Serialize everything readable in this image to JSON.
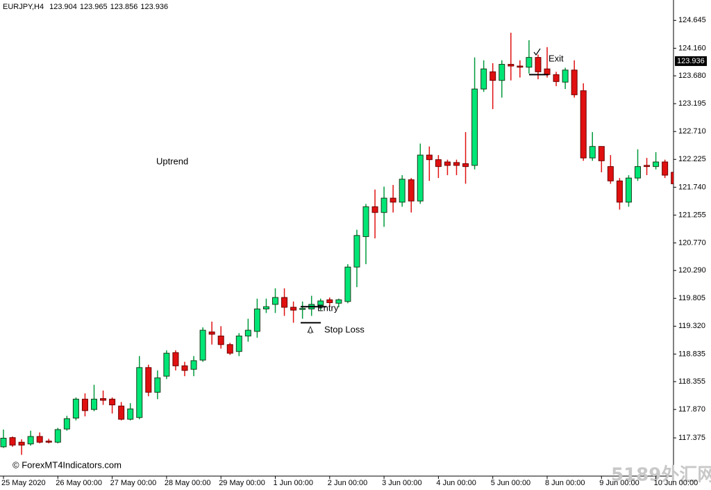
{
  "chart_data": {
    "type": "candlestick",
    "title": "EURJPY,H4",
    "header_values": [
      123.904,
      123.965,
      123.856,
      123.936
    ],
    "current_price": 123.936,
    "categories": [
      "25 May 2020",
      null,
      null,
      null,
      null,
      null,
      "26 May 00:00",
      null,
      null,
      null,
      null,
      null,
      "27 May 00:00",
      null,
      null,
      null,
      null,
      null,
      "28 May 00:00",
      null,
      null,
      null,
      null,
      null,
      "29 May 00:00",
      null,
      null,
      null,
      null,
      null,
      "1 Jun 00:00",
      null,
      null,
      null,
      null,
      null,
      "2 Jun 00:00",
      null,
      null,
      null,
      null,
      null,
      "3 Jun 00:00",
      null,
      null,
      null,
      null,
      null,
      "4 Jun 00:00",
      null,
      null,
      null,
      null,
      null,
      "5 Jun 00:00",
      null,
      null,
      null,
      null,
      null,
      "8 Jun 00:00",
      null,
      null,
      null,
      null,
      null,
      "9 Jun 00:00",
      null,
      null,
      null,
      null,
      null,
      "10 Jun 00:00",
      null,
      null
    ],
    "open": [
      117.22,
      117.38,
      117.3,
      117.27,
      117.4,
      117.32,
      117.3,
      117.53,
      117.72,
      118.05,
      117.87,
      118.06,
      118.05,
      117.93,
      117.7,
      117.73,
      118.6,
      118.17,
      118.45,
      118.86,
      118.63,
      118.57,
      118.73,
      119.22,
      119.15,
      119.0,
      118.88,
      119.15,
      119.23,
      119.62,
      119.7,
      119.82,
      119.65,
      119.63,
      119.62,
      119.68,
      119.78,
      119.72,
      119.75,
      120.35,
      120.88,
      121.4,
      121.3,
      121.55,
      121.48,
      121.87,
      121.5,
      122.3,
      122.22,
      122.18,
      122.17,
      122.15,
      122.12,
      123.45,
      123.75,
      123.6,
      123.88,
      123.85,
      123.83,
      124.0,
      123.8,
      123.7,
      123.57,
      123.78,
      123.42,
      122.25,
      122.45,
      122.1,
      121.85,
      121.48,
      121.9,
      122.12,
      122.1,
      122.18,
      122.0
    ],
    "high": [
      117.52,
      117.4,
      117.35,
      117.5,
      117.47,
      117.36,
      117.55,
      117.76,
      118.08,
      118.15,
      118.3,
      118.2,
      118.08,
      118.0,
      117.98,
      118.8,
      118.65,
      118.55,
      118.9,
      118.9,
      118.7,
      118.8,
      119.3,
      119.4,
      119.32,
      119.03,
      119.2,
      119.45,
      119.8,
      119.8,
      119.98,
      119.98,
      119.75,
      119.75,
      119.85,
      119.8,
      119.82,
      119.8,
      120.4,
      121.0,
      121.45,
      121.7,
      121.75,
      121.78,
      121.95,
      121.9,
      122.5,
      122.45,
      122.3,
      122.22,
      122.22,
      122.7,
      124.0,
      123.95,
      123.9,
      123.95,
      124.43,
      123.95,
      124.3,
      124.05,
      124.18,
      123.75,
      123.82,
      123.95,
      123.55,
      122.7,
      122.45,
      122.3,
      121.9,
      121.95,
      122.4,
      122.25,
      122.35,
      122.22,
      122.05
    ],
    "low": [
      117.2,
      117.22,
      117.08,
      117.24,
      117.28,
      117.28,
      117.28,
      117.5,
      117.68,
      117.75,
      117.84,
      117.95,
      117.8,
      117.68,
      117.68,
      117.7,
      118.1,
      118.05,
      118.4,
      118.55,
      118.45,
      118.45,
      118.7,
      119.0,
      118.93,
      118.82,
      118.8,
      119.05,
      119.12,
      119.55,
      119.55,
      119.5,
      119.38,
      119.45,
      119.5,
      119.6,
      119.68,
      119.65,
      119.72,
      120.0,
      120.4,
      120.85,
      121.05,
      121.3,
      121.4,
      121.3,
      121.45,
      121.85,
      121.9,
      121.95,
      121.95,
      121.8,
      122.05,
      123.4,
      123.1,
      123.3,
      123.6,
      123.65,
      123.72,
      123.62,
      123.65,
      123.5,
      123.45,
      123.3,
      122.2,
      122.2,
      122.0,
      121.8,
      121.35,
      121.4,
      121.85,
      121.95,
      122.05,
      121.9,
      121.75
    ],
    "close": [
      117.37,
      117.25,
      117.25,
      117.4,
      117.3,
      117.3,
      117.52,
      117.71,
      118.05,
      117.85,
      118.05,
      118.03,
      117.95,
      117.7,
      117.88,
      118.6,
      118.17,
      118.42,
      118.85,
      118.63,
      118.55,
      118.72,
      119.25,
      119.18,
      119.0,
      118.85,
      119.15,
      119.25,
      119.62,
      119.66,
      119.82,
      119.65,
      119.6,
      119.63,
      119.7,
      119.76,
      119.73,
      119.78,
      120.35,
      120.9,
      121.4,
      121.3,
      121.55,
      121.48,
      121.88,
      121.5,
      122.3,
      122.22,
      122.1,
      122.12,
      122.12,
      122.1,
      123.45,
      123.8,
      123.6,
      123.88,
      123.85,
      123.83,
      124.0,
      123.75,
      123.7,
      123.58,
      123.78,
      123.35,
      122.25,
      122.45,
      122.2,
      121.85,
      121.48,
      121.9,
      122.1,
      122.1,
      122.18,
      121.95,
      121.8
    ],
    "up_color": "#00e676",
    "down_color": "#e01010",
    "up_wick": "#009a3c",
    "down_wick": "#e01010",
    "ylim": [
      116.71,
      125.0
    ],
    "yticks": [
      124.645,
      {
        "value": 124.16,
        "label": "124.160"
      },
      {
        "value": 123.68,
        "label": "123.680"
      },
      123.195,
      {
        "value": 122.71,
        "label": "122.710"
      },
      122.225,
      {
        "value": 121.74,
        "label": "121.740"
      },
      121.255,
      {
        "value": 120.77,
        "label": "120.770"
      },
      {
        "value": 120.29,
        "label": "120.290"
      },
      119.805,
      {
        "value": 119.32,
        "label": "119.320"
      },
      118.835,
      118.355,
      {
        "value": 117.87,
        "label": "117.870"
      },
      117.375
    ],
    "annotations": {
      "uptrend": "Uptrend",
      "entry": {
        "text": "Entry",
        "price": 119.66
      },
      "stop_loss": {
        "text": "Stop Loss",
        "price": 119.38
      },
      "exit": {
        "text": "Exit",
        "price": 123.7
      }
    },
    "copyright": "© ForexMT4Indicators.com",
    "watermark": "5189外汇网"
  }
}
